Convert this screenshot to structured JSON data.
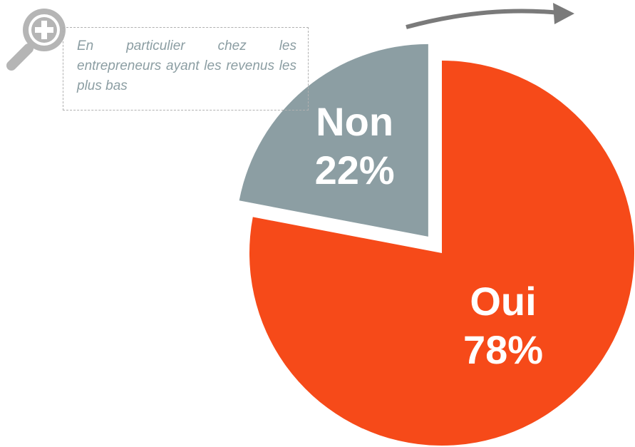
{
  "chart_data": {
    "type": "pie",
    "categories": [
      "Oui",
      "Non"
    ],
    "values": [
      78,
      22
    ],
    "value_labels": [
      "78%",
      "22%"
    ],
    "colors": [
      "#f64a19",
      "#8c9ea3"
    ],
    "exploded": [
      false,
      true
    ],
    "annotation": "En particulier chez les entrepreneurs ayant les revenus les plus bas"
  }
}
